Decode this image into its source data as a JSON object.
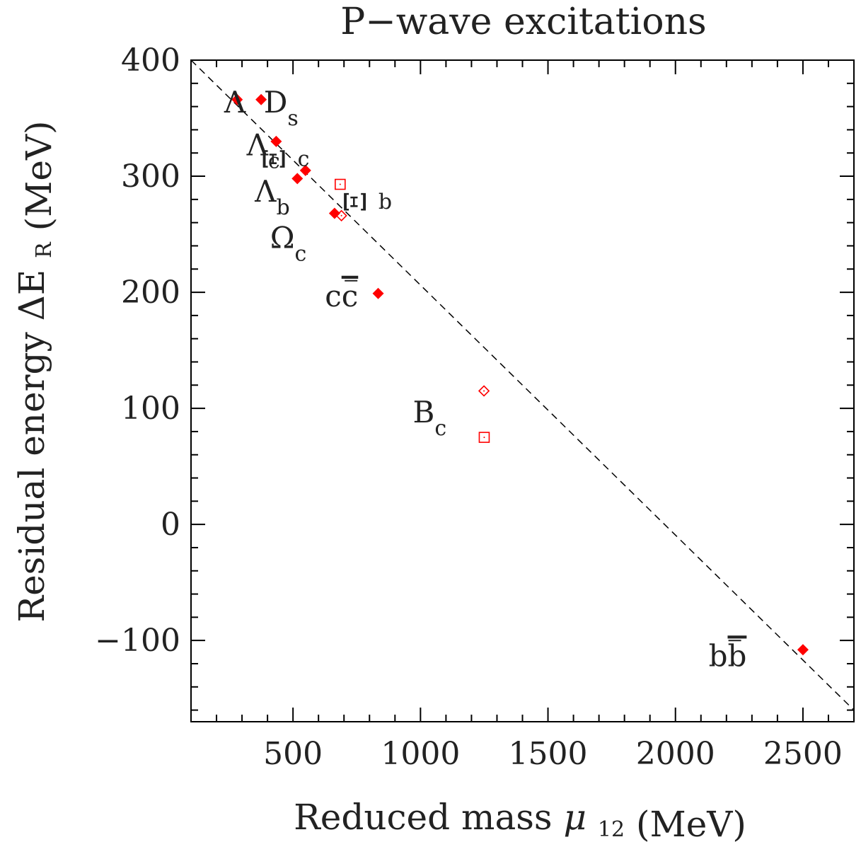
{
  "chart_data": {
    "type": "scatter",
    "title": "P−wave excitations",
    "xlabel": "Reduced mass",
    "xlabel_symbol": "μ",
    "xlabel_sub": "12",
    "xlabel_unit": "(MeV)",
    "ylabel": "Residual energy ΔE",
    "ylabel_sub": "R",
    "ylabel_unit": "(MeV)",
    "xlim": [
      100,
      2700
    ],
    "ylim": [
      -170,
      400
    ],
    "x_ticks": [
      500,
      1000,
      1500,
      2000,
      2500
    ],
    "y_ticks": [
      400,
      300,
      200,
      100,
      0,
      -100
    ],
    "x_tick_labels": [
      "500",
      "1000",
      "1500",
      "2000",
      "2500"
    ],
    "y_tick_labels": [
      "400",
      "300",
      "200",
      "100",
      "0",
      "−100"
    ],
    "grid": false,
    "marker_color": "#ff0000",
    "line_color": "#000000",
    "fit_line": {
      "style": "dashed",
      "x": [
        100,
        2700
      ],
      "y": [
        400,
        -160
      ]
    },
    "series": [
      {
        "marker": "filled-diamond",
        "points": [
          {
            "x": 281,
            "y": 366
          },
          {
            "x": 375,
            "y": 366
          },
          {
            "x": 434,
            "y": 330
          },
          {
            "x": 517,
            "y": 298
          },
          {
            "x": 549,
            "y": 305
          },
          {
            "x": 663,
            "y": 268
          },
          {
            "x": 834,
            "y": 199
          },
          {
            "x": 2500,
            "y": -108
          }
        ]
      },
      {
        "marker": "open-diamond",
        "points": [
          {
            "x": 690,
            "y": 266
          },
          {
            "x": 1249,
            "y": 115
          }
        ]
      },
      {
        "marker": "open-square",
        "points": [
          {
            "x": 685,
            "y": 293
          },
          {
            "x": 1250,
            "y": 75
          }
        ]
      }
    ],
    "annotations": [
      {
        "id": "lambda",
        "text": "Λ",
        "sub": "",
        "x": 230,
        "y": 355,
        "rotate": false
      },
      {
        "id": "ds",
        "text": "D",
        "sub": "s",
        "x": 385,
        "y": 355,
        "rotate": false
      },
      {
        "id": "lambda-c",
        "text": "Λ",
        "sub": "c",
        "x": 318,
        "y": 318,
        "rotate": false
      },
      {
        "id": "xi-c",
        "text": "Ξ",
        "sub": "c",
        "x": 468,
        "y": 315,
        "rotate": true
      },
      {
        "id": "lambda-b",
        "text": "Λ",
        "sub": "b",
        "x": 350,
        "y": 278,
        "rotate": false
      },
      {
        "id": "xi-b",
        "text": "Ξ",
        "sub": "b",
        "x": 785,
        "y": 278,
        "rotate": true
      },
      {
        "id": "omega-c",
        "text": "Ω",
        "sub": "c",
        "x": 410,
        "y": 238,
        "rotate": false
      },
      {
        "id": "ccbar",
        "text": "c",
        "bar": "c",
        "x": 625,
        "y": 188,
        "rotate": false
      },
      {
        "id": "bc",
        "text": "B",
        "sub": "c",
        "x": 970,
        "y": 88,
        "rotate": false
      },
      {
        "id": "bbbar",
        "text": "b",
        "bar": "b",
        "x": 2130,
        "y": -122,
        "rotate": false
      }
    ]
  }
}
